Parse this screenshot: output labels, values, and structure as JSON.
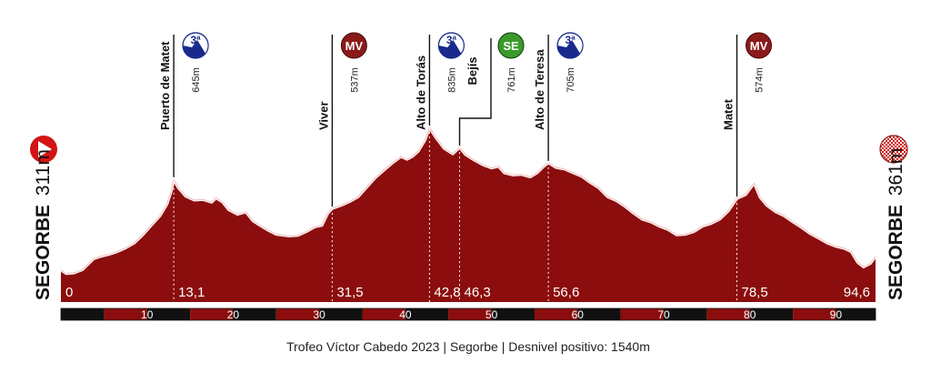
{
  "chart_data": {
    "type": "area",
    "title": "",
    "xlabel": "",
    "ylabel": "",
    "xlim": [
      0,
      94.6
    ],
    "ylim": [
      200,
      950
    ],
    "start": {
      "name": "SEGORBE",
      "altitude": "311m"
    },
    "finish": {
      "name": "SEGORBE",
      "altitude": "361m"
    },
    "km_markers": [
      "0",
      "13,1",
      "31,5",
      "42,8",
      "46,3",
      "56,6",
      "78,5",
      "94,6"
    ],
    "km_marker_values": [
      0,
      13.1,
      31.5,
      42.8,
      46.3,
      56.6,
      78.5,
      94.6
    ],
    "scale_ticks": [
      10,
      20,
      30,
      40,
      50,
      60,
      70,
      80,
      90
    ],
    "points": [
      {
        "name": "Puerto de Matet",
        "km": 13.1,
        "altitude": "645m",
        "badge": "3ª",
        "badge_type": "cat"
      },
      {
        "name": "Viver",
        "km": 31.5,
        "altitude": "537m",
        "badge": "MV",
        "badge_type": "mv"
      },
      {
        "name": "Alto de Torás",
        "km": 42.8,
        "altitude": "835m",
        "badge": "3ª",
        "badge_type": "cat"
      },
      {
        "name": "Bejís",
        "km": 46.3,
        "altitude": "761m",
        "badge": "SE",
        "badge_type": "se"
      },
      {
        "name": "Alto de Teresa",
        "km": 56.6,
        "altitude": "705m",
        "badge": "3ª",
        "badge_type": "cat"
      },
      {
        "name": "Matet",
        "km": 78.5,
        "altitude": "574m",
        "badge": "MV",
        "badge_type": "mv"
      }
    ],
    "profile": [
      [
        0,
        311
      ],
      [
        0.6,
        298
      ],
      [
        1.5,
        300
      ],
      [
        2.5,
        312
      ],
      [
        3.8,
        352
      ],
      [
        4.5,
        360
      ],
      [
        5.5,
        368
      ],
      [
        6.5,
        378
      ],
      [
        7.5,
        392
      ],
      [
        8.5,
        410
      ],
      [
        9.5,
        440
      ],
      [
        10.5,
        476
      ],
      [
        11.5,
        510
      ],
      [
        12.3,
        552
      ],
      [
        12.8,
        600
      ],
      [
        13.1,
        645
      ],
      [
        13.6,
        615
      ],
      [
        14.5,
        582
      ],
      [
        15.5,
        568
      ],
      [
        16.5,
        570
      ],
      [
        17.5,
        560
      ],
      [
        18,
        576
      ],
      [
        18.8,
        560
      ],
      [
        19.5,
        532
      ],
      [
        20.5,
        516
      ],
      [
        21.5,
        524
      ],
      [
        22.3,
        492
      ],
      [
        23.2,
        474
      ],
      [
        24,
        458
      ],
      [
        25,
        442
      ],
      [
        26.5,
        436
      ],
      [
        27.5,
        438
      ],
      [
        28.5,
        452
      ],
      [
        29.5,
        470
      ],
      [
        30.3,
        475
      ],
      [
        31,
        520
      ],
      [
        31.5,
        537
      ],
      [
        32.5,
        548
      ],
      [
        33.5,
        562
      ],
      [
        34.5,
        580
      ],
      [
        35.5,
        615
      ],
      [
        36.5,
        650
      ],
      [
        37.5,
        678
      ],
      [
        38.5,
        705
      ],
      [
        39.5,
        728
      ],
      [
        40.2,
        718
      ],
      [
        40.8,
        728
      ],
      [
        41.5,
        748
      ],
      [
        42.3,
        790
      ],
      [
        42.8,
        835
      ],
      [
        43.5,
        800
      ],
      [
        44.5,
        758
      ],
      [
        45.5,
        738
      ],
      [
        46.3,
        761
      ],
      [
        47,
        735
      ],
      [
        48,
        715
      ],
      [
        49,
        698
      ],
      [
        50,
        686
      ],
      [
        50.8,
        692
      ],
      [
        51.5,
        668
      ],
      [
        52.5,
        660
      ],
      [
        53.5,
        662
      ],
      [
        54.5,
        653
      ],
      [
        55.3,
        668
      ],
      [
        56,
        690
      ],
      [
        56.6,
        705
      ],
      [
        57.5,
        688
      ],
      [
        58.5,
        682
      ],
      [
        59.5,
        668
      ],
      [
        60.5,
        655
      ],
      [
        61.5,
        632
      ],
      [
        62.5,
        612
      ],
      [
        63.5,
        580
      ],
      [
        64.5,
        566
      ],
      [
        65.5,
        545
      ],
      [
        66.5,
        520
      ],
      [
        67.5,
        498
      ],
      [
        68.5,
        488
      ],
      [
        69.5,
        472
      ],
      [
        70.5,
        460
      ],
      [
        71.5,
        440
      ],
      [
        72.5,
        442
      ],
      [
        73.5,
        452
      ],
      [
        74.5,
        472
      ],
      [
        75.5,
        482
      ],
      [
        76.5,
        498
      ],
      [
        77.5,
        528
      ],
      [
        78.5,
        574
      ],
      [
        79.5,
        588
      ],
      [
        80.5,
        630
      ],
      [
        81.2,
        578
      ],
      [
        82,
        548
      ],
      [
        83,
        525
      ],
      [
        84,
        510
      ],
      [
        85,
        488
      ],
      [
        86,
        468
      ],
      [
        87,
        445
      ],
      [
        88,
        428
      ],
      [
        89,
        410
      ],
      [
        90,
        398
      ],
      [
        91,
        390
      ],
      [
        91.8,
        378
      ],
      [
        92.5,
        340
      ],
      [
        93.2,
        322
      ],
      [
        94,
        335
      ],
      [
        94.6,
        361
      ]
    ]
  },
  "caption": "Trofeo Víctor Cabedo 2023 | Segorbe | Desnivel positivo: 1540m",
  "colors": {
    "profile_fill": "#8b0d0d",
    "profile_stroke": "#f2c4c4",
    "scale_dark": "#111111",
    "scale_red": "#8b0d0d",
    "cat_badge": "#1a2a8c",
    "mv_badge": "#8b1a1a",
    "se_badge": "#3a9a2a",
    "start_icon": "#d41414",
    "finish_check": "#d41414"
  }
}
